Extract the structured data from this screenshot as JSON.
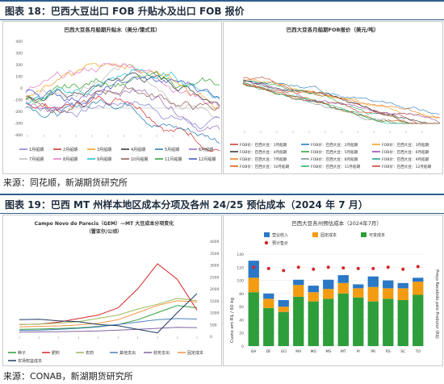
{
  "fig18": {
    "label": "图表 18：巴西大豆出口 FOB 升贴水及出口 FOB 报价",
    "source": "来源：同花顺，新湖期货研究所"
  },
  "fig19": {
    "label": "图表 19：巴西 MT 州样本地区成本分项及各州 24/25 预估成本（2024 年 7 月）",
    "source": "来源：CONAB，新湖期货研究所"
  },
  "colors": {
    "header_line": "#2e5d8e",
    "green": "#2e9e3a",
    "orange": "#f39c12",
    "blue": "#2a78c6",
    "red": "#d62728"
  },
  "chart_data": [
    {
      "id": "premium",
      "type": "line",
      "title": "巴西大豆各月船期升贴水（美分/蒲式耳）",
      "y_ticks": [
        "400",
        "300",
        "200",
        "100",
        "0",
        "-100",
        "-200",
        "-300",
        "-400"
      ],
      "ylim": [
        -400,
        400
      ],
      "legend": [
        "1月船期",
        "2月船期",
        "3月船期",
        "4月船期",
        "5月船期",
        "6月船期",
        "7月船期",
        "8月船期",
        "9月船期",
        "10月船期",
        "11月船期",
        "12月船期"
      ],
      "series_colors": [
        "#7f7fd5",
        "#d62728",
        "#f39c12",
        "#2e2e2e",
        "#1f77b4",
        "#9467bd",
        "#bbbbbb",
        "#e377c2",
        "#17becf",
        "#8c564b",
        "#2ca02c",
        "#3b4cc0"
      ]
    },
    {
      "id": "fob",
      "type": "line",
      "title": "巴西大豆各月船期FOB报价（美元/吨）",
      "legend": [
        "FOB价：巴西大豆：1月船期",
        "FOB价：巴西大豆：2月船期",
        "FOB价：巴西大豆：3月船期",
        "FOB价：巴西大豆：4月船期",
        "FOB价：巴西大豆：5月船期",
        "FOB价：巴西大豆：6月船期",
        "FOB价：巴西大豆：7月船期",
        "FOB价：巴西大豆：8月船期",
        "FOB价：巴西大豆：9月船期",
        "FOB价：巴西大豆：10月船期",
        "FOB价：巴西大豆：11月船期",
        "FOB价：巴西大豆：12月船期"
      ],
      "series_colors": [
        "#c0392b",
        "#1f77b4",
        "#f39c12",
        "#2e2e2e",
        "#2e9e3a",
        "#8e44ad",
        "#e67e22",
        "#7f8c8d",
        "#16a085",
        "#d35400",
        "#27ae60",
        "#c0392b"
      ]
    },
    {
      "id": "mt_cost",
      "type": "line",
      "title": "Campo Novo do Parecis（GEM）—MT 大豆成本分项变化",
      "subtitle": "（雷亚尔/公顷）",
      "y_ticks": [
        "4000",
        "3500",
        "3000",
        "2500",
        "2000",
        "1500",
        "1000",
        "500",
        "0"
      ],
      "ylim": [
        0,
        4000
      ],
      "legend": [
        "种子",
        "肥料",
        "农药",
        "其他支出",
        "财务支出",
        "固定成本",
        "农场权益成本"
      ],
      "series_colors": [
        "#2e9e3a",
        "#d62728",
        "#9bbb59",
        "#4f81bd",
        "#8064a2",
        "#f79646",
        "#1f3b63"
      ],
      "x_count": 10,
      "series": [
        {
          "name": "种子",
          "values": [
            300,
            310,
            330,
            360,
            420,
            500,
            700,
            1000,
            1300,
            1200
          ]
        },
        {
          "name": "肥料",
          "values": [
            500,
            520,
            600,
            750,
            900,
            1200,
            2000,
            3050,
            2400,
            1100
          ]
        },
        {
          "name": "农药",
          "values": [
            500,
            520,
            560,
            620,
            760,
            900,
            1150,
            1350,
            1600,
            1500
          ]
        },
        {
          "name": "其他支出",
          "values": [
            250,
            260,
            300,
            340,
            400,
            500,
            600,
            700,
            750,
            730
          ]
        },
        {
          "name": "财务支出",
          "values": [
            180,
            190,
            200,
            210,
            230,
            260,
            300,
            340,
            380,
            370
          ]
        },
        {
          "name": "固定成本",
          "values": [
            400,
            420,
            440,
            480,
            550,
            700,
            1000,
            1300,
            1500,
            1450
          ]
        },
        {
          "name": "农场权益成本",
          "values": [
            700,
            720,
            650,
            620,
            500,
            450,
            300,
            150,
            1000,
            1800
          ]
        }
      ]
    },
    {
      "id": "state_cost",
      "type": "bar",
      "title": "巴西大豆各州预估成本（2024年7月）",
      "categories": [
        "BA",
        "DF",
        "GO",
        "MA",
        "MG",
        "MS",
        "MT",
        "PI",
        "PR",
        "RS",
        "SC",
        "TO"
      ],
      "legend": [
        "营业收入",
        "固定成本",
        "可变成本",
        "预计售价"
      ],
      "ylabel": "Custo em R$ / 60 kg",
      "y2label": "Preço Recebido pelo Produtor (R$)",
      "y_ticks": [
        "140",
        "120",
        "100",
        "80",
        "60",
        "40",
        "20",
        "0"
      ],
      "ylim": [
        0,
        140
      ],
      "series": [
        {
          "name": "可变成本",
          "values": [
            82,
            58,
            52,
            75,
            68,
            72,
            80,
            74,
            68,
            72,
            70,
            78
          ]
        },
        {
          "name": "固定成本",
          "values": [
            22,
            14,
            8,
            18,
            14,
            15,
            16,
            14,
            22,
            16,
            18,
            20
          ]
        },
        {
          "name": "营业收入",
          "values": [
            26,
            8,
            10,
            8,
            10,
            14,
            12,
            6,
            16,
            12,
            8,
            6
          ]
        },
        {
          "name": "预计售价",
          "values": [
            120,
            118,
            115,
            120,
            117,
            120,
            119,
            118,
            118,
            120,
            117,
            121
          ]
        }
      ]
    }
  ]
}
